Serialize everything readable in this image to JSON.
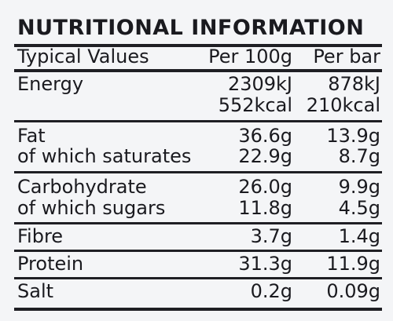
{
  "title": "NUTRITIONAL INFORMATION",
  "header": {
    "col1": "Typical Values",
    "col2": "Per 100g",
    "col3": "Per bar"
  },
  "rows": [
    {
      "label": "Energy",
      "per100g": "2309kJ",
      "perbar": "878kJ"
    },
    {
      "label": "",
      "per100g": "552kcal",
      "perbar": "210kcal"
    },
    {
      "label": "Fat",
      "per100g": "36.6g",
      "perbar": "13.9g"
    },
    {
      "label": "of which saturates",
      "per100g": "22.9g",
      "perbar": "8.7g"
    },
    {
      "label": "Carbohydrate",
      "per100g": "26.0g",
      "perbar": "9.9g"
    },
    {
      "label": "of which sugars",
      "per100g": "11.8g",
      "perbar": "4.5g"
    },
    {
      "label": "Fibre",
      "per100g": "3.7g",
      "perbar": "1.4g"
    },
    {
      "label": "Protein",
      "per100g": "31.3g",
      "perbar": "11.9g"
    },
    {
      "label": "Salt",
      "per100g": "0.2g",
      "perbar": "0.09g"
    }
  ]
}
